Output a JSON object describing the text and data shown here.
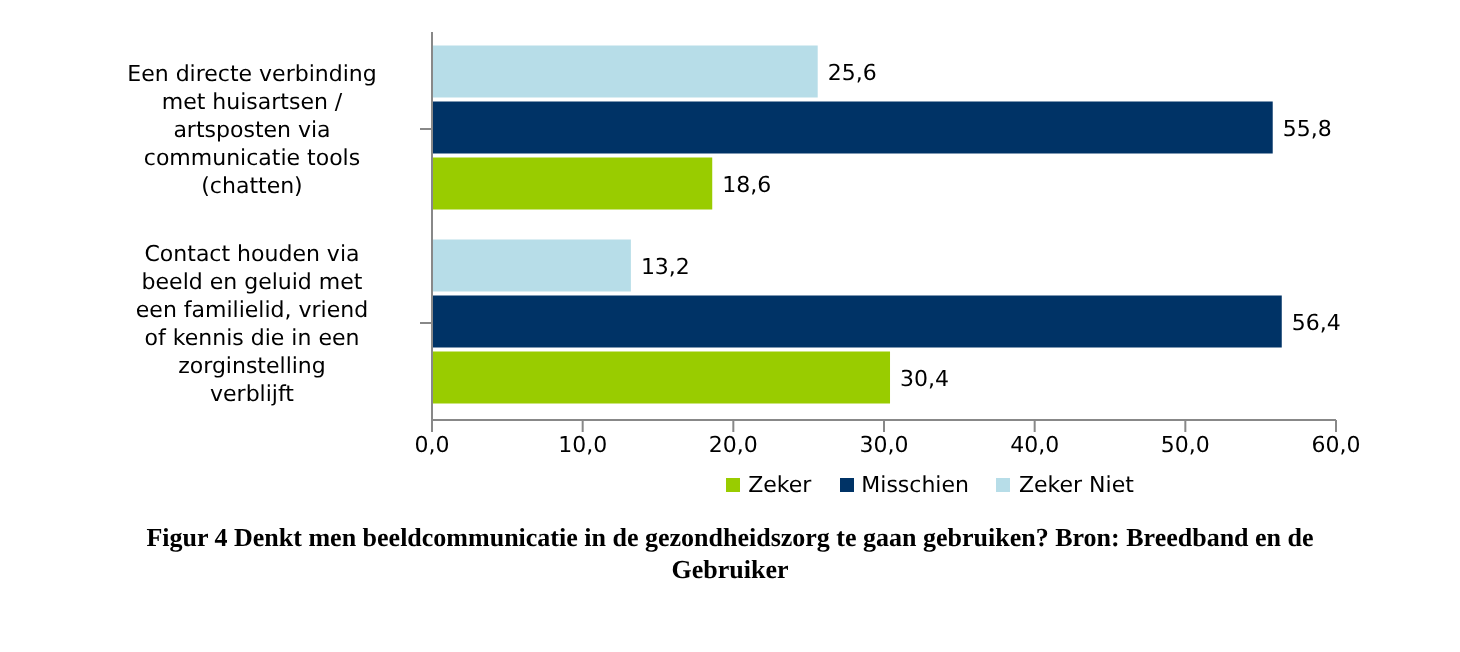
{
  "chart_data": {
    "type": "bar",
    "orientation": "horizontal",
    "title": "Figur 4 Denkt men beeldcommunicatie in de gezondheidszorg te gaan gebruiken? Bron: Breedband en de Gebruiker",
    "categories": [
      "Een directe verbinding met huisartsen / artsposten via communicatie tools (chatten)",
      "Contact houden via beeld en geluid met een familielid, vriend of kennis die in een zorginstelling verblijft"
    ],
    "series": [
      {
        "name": "Zeker",
        "color": "#99cc00",
        "values": [
          18.6,
          30.4
        ],
        "value_labels": [
          "18,6",
          "30,4"
        ]
      },
      {
        "name": "Misschien",
        "color": "#003366",
        "values": [
          55.8,
          56.4
        ],
        "value_labels": [
          "55,8",
          "56,4"
        ]
      },
      {
        "name": "Zeker Niet",
        "color": "#b7dde8",
        "values": [
          25.6,
          13.2
        ],
        "value_labels": [
          "25,6",
          "13,2"
        ]
      }
    ],
    "xlim": [
      0,
      60
    ],
    "xticks": [
      {
        "value": 0,
        "label": "0,0"
      },
      {
        "value": 10,
        "label": "10,0"
      },
      {
        "value": 20,
        "label": "20,0"
      },
      {
        "value": 30,
        "label": "30,0"
      },
      {
        "value": 40,
        "label": "40,0"
      },
      {
        "value": 50,
        "label": "50,0"
      },
      {
        "value": 60,
        "label": "60,0"
      }
    ],
    "grid": false,
    "legend": "bottom"
  }
}
